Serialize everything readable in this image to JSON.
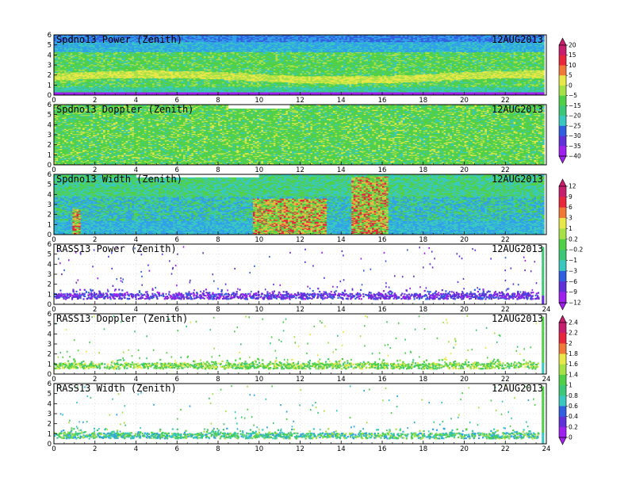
{
  "chart_data": {
    "type": "heatmap",
    "date": "12AUG2013",
    "x_range": [
      0,
      24
    ],
    "y_range": [
      0,
      6
    ],
    "x_ticks": [
      "0",
      "2",
      "4",
      "6",
      "8",
      "10",
      "12",
      "14",
      "16",
      "18",
      "20",
      "22",
      "24"
    ],
    "y_ticks": [
      "0",
      "1",
      "2",
      "3",
      "4",
      "5",
      "6"
    ],
    "grid": false,
    "panels": [
      {
        "title": "Spdno13 Power (Zenith)",
        "date": "12AUG2013",
        "kind": "power"
      },
      {
        "title": "Spdno13 Doppler (Zenith)",
        "date": "12AUG2013",
        "kind": "doppler"
      },
      {
        "title": "Spdno13 Width (Zenith)",
        "date": "12AUG2013",
        "kind": "width"
      },
      {
        "title": "RASS13 Power (Zenith)",
        "date": "12AUG2013",
        "kind": "rpower"
      },
      {
        "title": "RASS13 Doppler (Zenith)",
        "date": "12AUG2013",
        "kind": "rdoppler"
      },
      {
        "title": "RASS13 Width (Zenith)",
        "date": "12AUG2013",
        "kind": "rwidth"
      }
    ],
    "colorbars": [
      {
        "ticks": [
          "20",
          "15",
          "10",
          "5",
          "0",
          "−5",
          "−15",
          "−20",
          "−25",
          "−30",
          "−35",
          "−40"
        ]
      },
      {
        "ticks": [
          "12",
          "9",
          "6",
          "3",
          "1",
          "0.2",
          "−0.2",
          "−1",
          "−3",
          "−6",
          "−9",
          "−12"
        ]
      },
      {
        "ticks": [
          "2.4",
          "2.2",
          "2",
          "1.8",
          "1.6",
          "1.4",
          "1",
          "0.8",
          "0.6",
          "0.4",
          "0.2",
          "0"
        ]
      }
    ],
    "palette": [
      "#c81e6e",
      "#e8263c",
      "#f07838",
      "#f0b040",
      "#e8e848",
      "#a8e048",
      "#50d048",
      "#3cc878",
      "#38c8c0",
      "#30a0e8",
      "#3060e0",
      "#6030d8",
      "#a020f0"
    ]
  }
}
